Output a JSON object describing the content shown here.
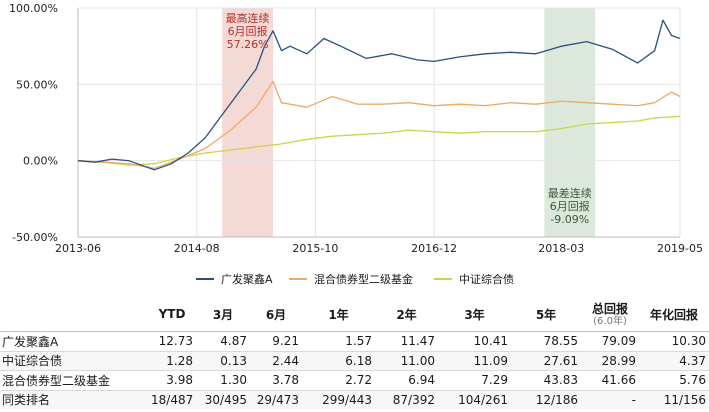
{
  "chart_data": {
    "type": "line",
    "x_ticks": [
      "2013-06",
      "2014-08",
      "2015-10",
      "2016-12",
      "2018-03",
      "2019-05"
    ],
    "y_ticks": [
      "100.00%",
      "50.00%",
      "0.00%",
      "-50.00%"
    ],
    "ylim": [
      -50,
      100
    ],
    "xlim": [
      "2013-06",
      "2019-05"
    ],
    "grid": true,
    "legend_position": "bottom",
    "series": [
      {
        "name": "广发聚鑫A",
        "color": "#2a4f80",
        "points": [
          [
            "2013-06",
            0
          ],
          [
            "2013-08",
            -1
          ],
          [
            "2013-10",
            1
          ],
          [
            "2013-12",
            0
          ],
          [
            "2014-02",
            -4
          ],
          [
            "2014-03",
            -6
          ],
          [
            "2014-05",
            -2
          ],
          [
            "2014-07",
            5
          ],
          [
            "2014-09",
            15
          ],
          [
            "2014-11",
            30
          ],
          [
            "2015-01",
            45
          ],
          [
            "2015-03",
            60
          ],
          [
            "2015-04",
            75
          ],
          [
            "2015-05",
            85
          ],
          [
            "2015-06",
            72
          ],
          [
            "2015-07",
            75
          ],
          [
            "2015-09",
            70
          ],
          [
            "2015-11",
            80
          ],
          [
            "2016-01",
            75
          ],
          [
            "2016-04",
            67
          ],
          [
            "2016-07",
            70
          ],
          [
            "2016-10",
            66
          ],
          [
            "2016-12",
            65
          ],
          [
            "2017-03",
            68
          ],
          [
            "2017-06",
            70
          ],
          [
            "2017-09",
            71
          ],
          [
            "2017-12",
            70
          ],
          [
            "2018-03",
            75
          ],
          [
            "2018-06",
            78
          ],
          [
            "2018-09",
            73
          ],
          [
            "2018-12",
            64
          ],
          [
            "2019-02",
            72
          ],
          [
            "2019-03",
            92
          ],
          [
            "2019-04",
            82
          ],
          [
            "2019-05",
            80
          ]
        ]
      },
      {
        "name": "混合债券型二级基金",
        "color": "#f0a868",
        "points": [
          [
            "2013-06",
            0
          ],
          [
            "2013-09",
            -1
          ],
          [
            "2013-12",
            -2
          ],
          [
            "2014-03",
            -5
          ],
          [
            "2014-06",
            1
          ],
          [
            "2014-09",
            8
          ],
          [
            "2014-12",
            20
          ],
          [
            "2015-03",
            35
          ],
          [
            "2015-05",
            52
          ],
          [
            "2015-06",
            38
          ],
          [
            "2015-09",
            35
          ],
          [
            "2015-12",
            42
          ],
          [
            "2016-03",
            37
          ],
          [
            "2016-06",
            37
          ],
          [
            "2016-09",
            38
          ],
          [
            "2016-12",
            36
          ],
          [
            "2017-03",
            37
          ],
          [
            "2017-06",
            36
          ],
          [
            "2017-09",
            38
          ],
          [
            "2017-12",
            37
          ],
          [
            "2018-03",
            39
          ],
          [
            "2018-06",
            38
          ],
          [
            "2018-09",
            37
          ],
          [
            "2018-12",
            36
          ],
          [
            "2019-02",
            38
          ],
          [
            "2019-04",
            45
          ],
          [
            "2019-05",
            42
          ]
        ]
      },
      {
        "name": "中证综合债",
        "color": "#c8d64a",
        "points": [
          [
            "2013-06",
            0
          ],
          [
            "2013-09",
            -1
          ],
          [
            "2013-12",
            -3
          ],
          [
            "2014-03",
            -2
          ],
          [
            "2014-06",
            2
          ],
          [
            "2014-09",
            5
          ],
          [
            "2014-12",
            7
          ],
          [
            "2015-03",
            9
          ],
          [
            "2015-06",
            11
          ],
          [
            "2015-09",
            14
          ],
          [
            "2015-12",
            16
          ],
          [
            "2016-03",
            17
          ],
          [
            "2016-06",
            18
          ],
          [
            "2016-09",
            20
          ],
          [
            "2016-12",
            19
          ],
          [
            "2017-03",
            18
          ],
          [
            "2017-06",
            19
          ],
          [
            "2017-09",
            19
          ],
          [
            "2017-12",
            19
          ],
          [
            "2018-03",
            21
          ],
          [
            "2018-06",
            24
          ],
          [
            "2018-09",
            25
          ],
          [
            "2018-12",
            26
          ],
          [
            "2019-02",
            28
          ],
          [
            "2019-05",
            29
          ]
        ]
      }
    ],
    "highlights": [
      {
        "from": "2014-11",
        "to": "2015-05",
        "color": "#f5d9d4",
        "label": [
          "最高连续",
          "6月回报",
          "57.26%"
        ],
        "label_color": "#b03030",
        "label_pos": "top"
      },
      {
        "from": "2018-01",
        "to": "2018-07",
        "color": "#dce8db",
        "label": [
          "最差连续",
          "6月回报",
          "-9.09%"
        ],
        "label_color": "#3a5a3a",
        "label_pos": "bottom"
      }
    ]
  },
  "legend": [
    {
      "label": "广发聚鑫A",
      "color": "#2a4f80"
    },
    {
      "label": "混合债券型二级基金",
      "color": "#f0a868"
    },
    {
      "label": "中证综合债",
      "color": "#c8d64a"
    }
  ],
  "table": {
    "headers": [
      {
        "main": "",
        "sub": ""
      },
      {
        "main": "YTD",
        "sub": ""
      },
      {
        "main": "3月",
        "sub": ""
      },
      {
        "main": "6月",
        "sub": ""
      },
      {
        "main": "1年",
        "sub": ""
      },
      {
        "main": "2年",
        "sub": ""
      },
      {
        "main": "3年",
        "sub": ""
      },
      {
        "main": "5年",
        "sub": ""
      },
      {
        "main": "总回报",
        "sub": "(6.0年)"
      },
      {
        "main": "年化回报",
        "sub": ""
      }
    ],
    "rows": [
      [
        "广发聚鑫A",
        "12.73",
        "4.87",
        "9.21",
        "1.57",
        "11.47",
        "10.41",
        "78.55",
        "79.09",
        "10.30"
      ],
      [
        "中证综合债",
        "1.28",
        "0.13",
        "2.44",
        "6.18",
        "11.00",
        "11.09",
        "27.61",
        "28.99",
        "4.37"
      ],
      [
        "混合债券型二级基金",
        "3.98",
        "1.30",
        "3.78",
        "2.72",
        "6.94",
        "7.29",
        "43.83",
        "41.66",
        "5.76"
      ],
      [
        "同类排名",
        "18/487",
        "30/495",
        "29/473",
        "299/443",
        "87/392",
        "104/261",
        "12/186",
        "-",
        "11/156"
      ]
    ]
  }
}
